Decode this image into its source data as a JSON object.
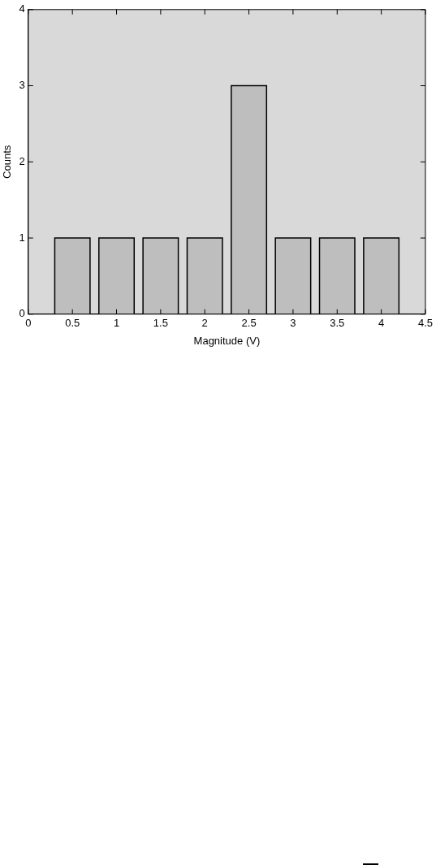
{
  "chart_data": {
    "type": "bar",
    "xlabel": "Magnitude (V)",
    "ylabel": "Counts",
    "x": [
      0.5,
      1,
      1.5,
      2,
      2.5,
      3,
      3.5,
      4
    ],
    "values": [
      1,
      1,
      1,
      1,
      3,
      1,
      1,
      1
    ],
    "color": "#bebebe",
    "xlim": [
      0,
      4.5
    ],
    "xticks": [
      0,
      0.5,
      1,
      1.5,
      2,
      2.5,
      3,
      3.5,
      4,
      4.5
    ],
    "ylim": [
      0,
      4
    ],
    "yticks": [
      0,
      1,
      2,
      3,
      4
    ],
    "grid": false,
    "legend": false
  }
}
